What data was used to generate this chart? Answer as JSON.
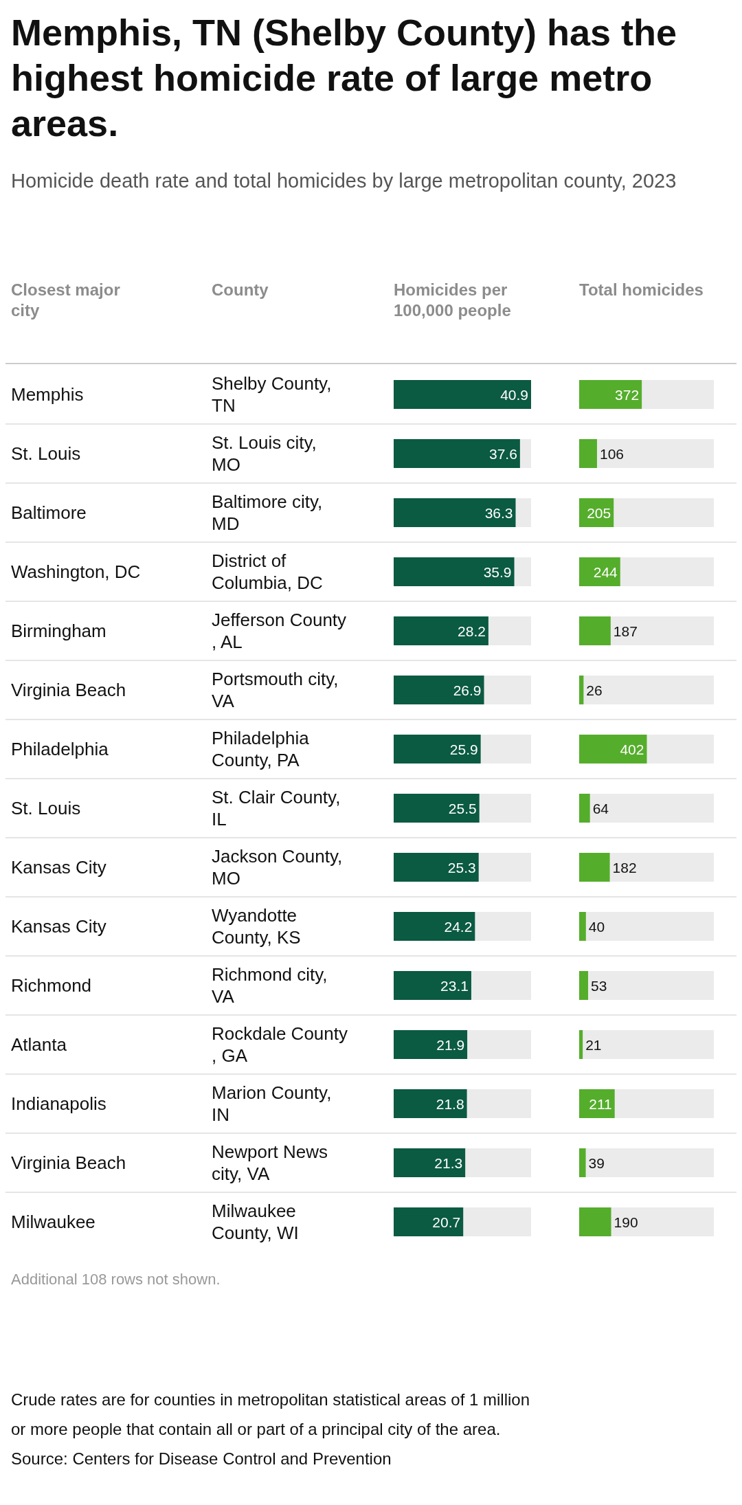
{
  "chart_data": [
    {
      "type": "bar",
      "orientation": "horizontal",
      "title": "Memphis, TN (Shelby County) has the highest homicide rate of large metro areas.",
      "subtitle": "Homicide death rate and total homicides by large metropolitan county, 2023",
      "ylabel": "Closest major city",
      "y2label": "County",
      "xlabel": "Homicides per 100,000 people",
      "categories": [
        "Memphis",
        "St. Louis",
        "Baltimore",
        "Washington, DC",
        "Birmingham",
        "Virginia Beach",
        "Philadelphia",
        "St. Louis",
        "Kansas City",
        "Kansas City",
        "Richmond",
        "Atlanta",
        "Indianapolis",
        "Virginia Beach",
        "Milwaukee"
      ],
      "y2_categories": [
        "Shelby County, TN",
        "St. Louis city, MO",
        "Baltimore city, MD",
        "District of Columbia, DC",
        "Jefferson County, AL",
        "Portsmouth city, VA",
        "Philadelphia County, PA",
        "St. Clair County, IL",
        "Jackson County, MO",
        "Wyandotte County, KS",
        "Richmond city, VA",
        "Rockdale County, GA",
        "Marion County, IN",
        "Newport News city, VA",
        "Milwaukee County, WI"
      ],
      "values": [
        40.9,
        37.6,
        36.3,
        35.9,
        28.2,
        26.9,
        25.9,
        25.5,
        25.3,
        24.2,
        23.1,
        21.9,
        21.8,
        21.3,
        20.7
      ],
      "color": "#0b5a42",
      "xlim": [
        0,
        40.9
      ],
      "data_labels": true,
      "tick_labels": "y",
      "annotations": [
        "Additional 108 rows not shown.",
        "Crude rates are for counties in metropolitan statistical areas of 1 million or more people that contain all or part of a principal city of the area.",
        "Source: Centers for Disease Control and Prevention"
      ]
    },
    {
      "type": "bar",
      "orientation": "horizontal",
      "xlabel": "Total homicides",
      "categories": [
        null,
        null,
        null,
        null,
        null,
        null,
        null,
        null,
        null,
        null,
        null,
        null,
        null,
        null,
        null
      ],
      "values": [
        372,
        106,
        205,
        244,
        187,
        26,
        402,
        64,
        182,
        40,
        53,
        21,
        211,
        39,
        190
      ],
      "color": "#55ad2c",
      "xlim": [
        0,
        800
      ],
      "data_labels": true,
      "tick_labels": false
    }
  ]
}
